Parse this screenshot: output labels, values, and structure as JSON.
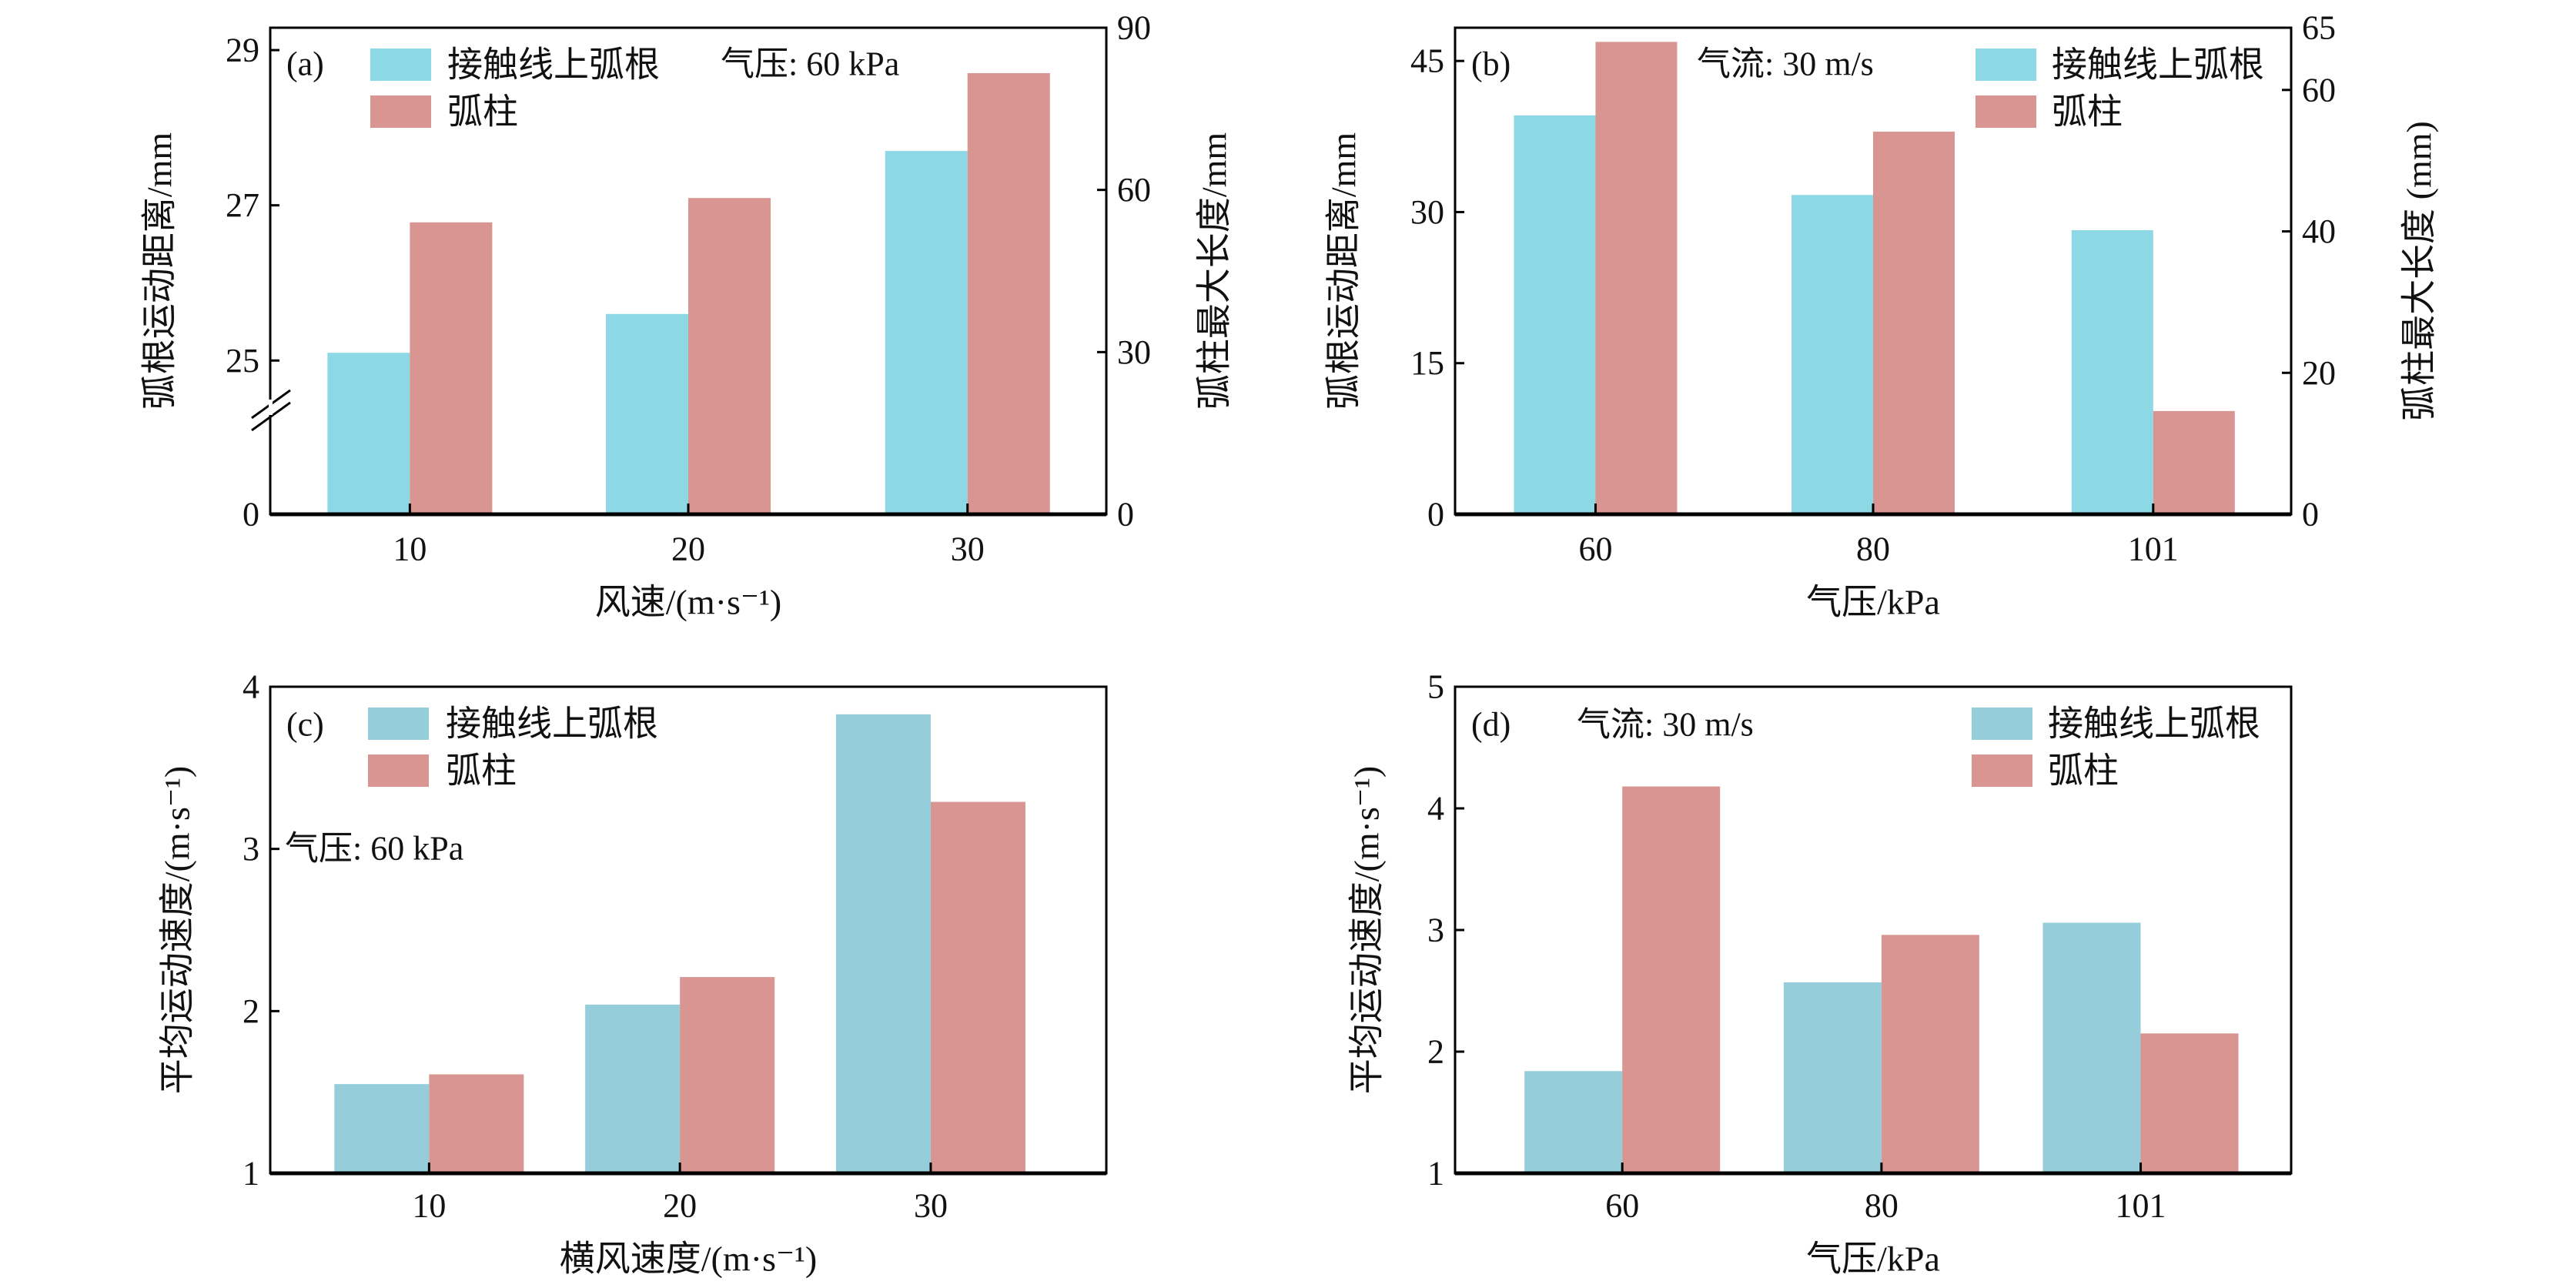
{
  "colors": {
    "root_blue_ab": "#8dd8e5",
    "root_blue_cd": "#95cddb",
    "column_red": "#d89591",
    "axis": "#000000"
  },
  "chart_data": [
    {
      "type": "bar",
      "panel_label": "(a)",
      "annotation": "气压: 60 kPa",
      "categories": [
        "10",
        "20",
        "30"
      ],
      "xlabel": "风速/(m·s⁻¹)",
      "ylabel": "弧根运动距离/mm",
      "ylabel_right": "弧柱最大长度/mm",
      "ylim": [
        0,
        29.3
      ],
      "y_break": true,
      "yticks": [
        0,
        25,
        27,
        29
      ],
      "ylim_right": [
        0,
        90
      ],
      "yticks_right": [
        0,
        30,
        60,
        90
      ],
      "legend": [
        "接触线上弧根",
        "弧柱"
      ],
      "legend_position": "top-left",
      "series": [
        {
          "name": "接触线上弧根",
          "axis": "left",
          "values": [
            25.1,
            25.6,
            27.7
          ]
        },
        {
          "name": "弧柱",
          "axis": "right",
          "values": [
            54,
            58.5,
            81.6
          ]
        }
      ]
    },
    {
      "type": "bar",
      "panel_label": "(b)",
      "annotation": "气流: 30 m/s",
      "categories": [
        "60",
        "80",
        "101"
      ],
      "xlabel": "气压/kPa",
      "ylabel": "弧根运动距离/mm",
      "ylabel_right": "弧柱最大长度 (mm)",
      "ylim": [
        0,
        48.3
      ],
      "yticks": [
        0,
        15,
        30,
        45
      ],
      "ylim_right": [
        0,
        68.8
      ],
      "yticks_right": [
        0,
        20,
        40,
        60
      ],
      "right_top_label": "65",
      "legend": [
        "接触线上弧根",
        "弧柱"
      ],
      "legend_position": "top-right",
      "series": [
        {
          "name": "接触线上弧根",
          "axis": "left",
          "values": [
            39.6,
            31.7,
            28.2
          ]
        },
        {
          "name": "弧柱",
          "axis": "right",
          "values": [
            66.8,
            54.1,
            14.6
          ]
        }
      ]
    },
    {
      "type": "bar",
      "panel_label": "(c)",
      "annotation": "气压: 60 kPa",
      "categories": [
        "10",
        "20",
        "30"
      ],
      "xlabel": "横风速度/(m·s⁻¹)",
      "ylabel": "平均运动速度/(m·s⁻¹)",
      "ylim": [
        1,
        4
      ],
      "yticks": [
        1,
        2,
        3,
        4
      ],
      "legend": [
        "接触线上弧根",
        "弧柱"
      ],
      "legend_position": "top-left",
      "series": [
        {
          "name": "接触线上弧根",
          "axis": "left",
          "values": [
            1.55,
            2.04,
            3.83
          ]
        },
        {
          "name": "弧柱",
          "axis": "left",
          "values": [
            1.61,
            2.21,
            3.29
          ]
        }
      ]
    },
    {
      "type": "bar",
      "panel_label": "(d)",
      "annotation": "气流: 30 m/s",
      "categories": [
        "60",
        "80",
        "101"
      ],
      "xlabel": "气压/kPa",
      "ylabel": "平均运动速度/(m·s⁻¹)",
      "ylim": [
        1,
        5
      ],
      "yticks": [
        1,
        2,
        3,
        4,
        5
      ],
      "legend": [
        "接触线上弧根",
        "弧柱"
      ],
      "legend_position": "top-right",
      "series": [
        {
          "name": "接触线上弧根",
          "axis": "left",
          "values": [
            1.84,
            2.57,
            3.06
          ]
        },
        {
          "name": "弧柱",
          "axis": "left",
          "values": [
            4.18,
            2.96,
            2.15
          ]
        }
      ]
    }
  ]
}
